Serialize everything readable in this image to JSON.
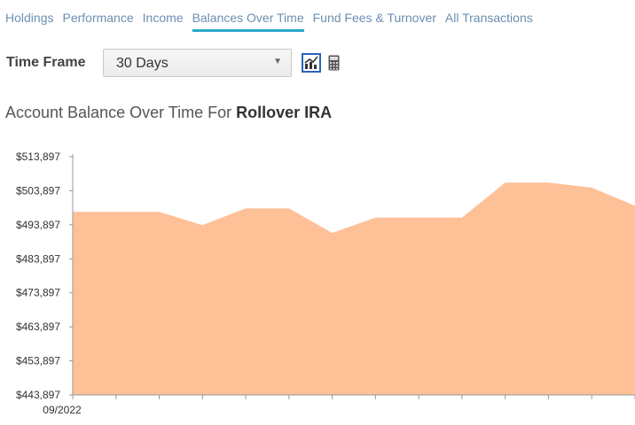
{
  "tabs": [
    {
      "label": "Holdings"
    },
    {
      "label": "Performance"
    },
    {
      "label": "Income"
    },
    {
      "label": "Balances Over Time",
      "active": true
    },
    {
      "label": "Fund Fees & Turnover"
    },
    {
      "label": "All Transactions"
    }
  ],
  "timeframe": {
    "label": "Time Frame",
    "selected": "30 Days"
  },
  "view_buttons": {
    "chart_icon": "line-chart-icon",
    "calculator_icon": "calculator-icon"
  },
  "header": {
    "prefix": "Account Balance Over Time For",
    "account": "Rollover IRA"
  },
  "colors": {
    "area": "#fdc097",
    "tab_link": "#6b8fb2",
    "tab_active_underline": "#2aa7c9"
  },
  "chart_data": {
    "type": "area",
    "x_tick_labels": [
      "09/2022"
    ],
    "y_tick_labels": [
      "$513,897",
      "$503,897",
      "$493,897",
      "$483,897",
      "$473,897",
      "$463,897",
      "$453,897",
      "$443,897"
    ],
    "ylim": [
      443897,
      513897
    ],
    "values": [
      497700,
      497700,
      497700,
      493800,
      498700,
      498700,
      491500,
      496000,
      496000,
      496000,
      506300,
      506300,
      504800,
      499500
    ],
    "grid": false
  }
}
